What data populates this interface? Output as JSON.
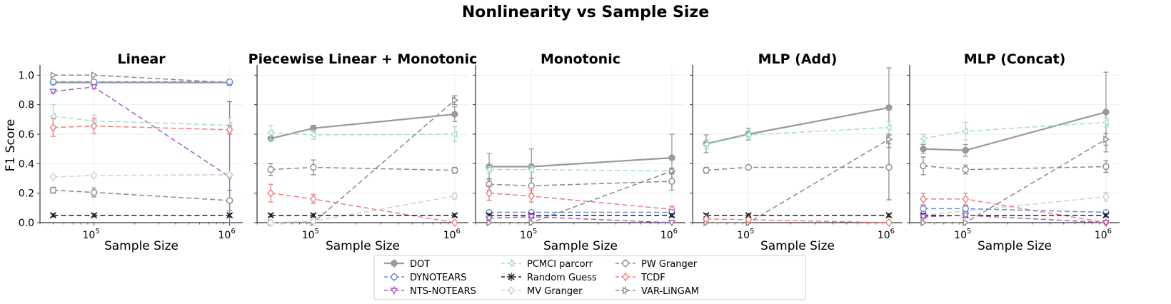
{
  "figure": {
    "suptitle": "Nonlinearity vs Sample Size"
  },
  "styles": {
    "DOT": {
      "color": "#999999",
      "dash": "solid",
      "marker": "circle-filled",
      "width": 2.2
    },
    "DYNOTEARS": {
      "color": "#6a8fd6",
      "dash": "dashed",
      "marker": "circle",
      "width": 1.5
    },
    "NTS-NOTEARS": {
      "color": "#a35fbf",
      "dash": "dashed",
      "marker": "triangle-down",
      "width": 1.5
    },
    "PCMCI parcorr": {
      "color": "#a8ddcc",
      "dash": "dashed",
      "marker": "triangle-left",
      "width": 1.5
    },
    "Random Guess": {
      "color": "#222222",
      "dash": "dashed",
      "marker": "x",
      "width": 1.5
    },
    "MV Granger": {
      "color": "#cfcfcf",
      "dash": "dashed",
      "marker": "diamond",
      "width": 1.5
    },
    "PW Granger": {
      "color": "#8a8a8a",
      "dash": "dashed",
      "marker": "circle",
      "width": 1.5
    },
    "TCDF": {
      "color": "#ee7d7d",
      "dash": "dashed",
      "marker": "diamond",
      "width": 1.5
    },
    "VAR-LiNGAM": {
      "color": "#8a8a8a",
      "dash": "dashed",
      "marker": "triangle-right",
      "width": 1.5
    }
  },
  "legend": {
    "placement": "lower-center",
    "entries": [
      "DOT",
      "DYNOTEARS",
      "NTS-NOTEARS",
      "PCMCI parcorr",
      "Random Guess",
      "MV Granger",
      "PW Granger",
      "TCDF",
      "VAR-LiNGAM"
    ]
  },
  "chart_data": [
    {
      "type": "line",
      "title": "Linear",
      "xlabel": "Sample Size",
      "ylabel": "F1 Score",
      "xscale": "log",
      "xlim": [
        40000,
        1250000
      ],
      "ylim": [
        0,
        1.05
      ],
      "xticks": [
        {
          "value": 100000,
          "label": "10^5"
        },
        {
          "value": 1000000,
          "label": "10^6"
        }
      ],
      "yticks": [
        "0.0",
        "0.2",
        "0.4",
        "0.6",
        "0.8",
        "1.0"
      ],
      "grid": true,
      "series": [
        {
          "name": "VAR-LiNGAM",
          "x": [
            50000,
            100000,
            1000000
          ],
          "y": [
            1.0,
            1.0,
            0.95
          ],
          "err": [
            0.0,
            0.0,
            0.02
          ]
        },
        {
          "name": "DOT",
          "x": [
            50000,
            100000,
            1000000
          ],
          "y": [
            0.95,
            0.95,
            0.95
          ],
          "err": [
            0.01,
            0.01,
            0.01
          ]
        },
        {
          "name": "DYNOTEARS",
          "x": [
            50000,
            100000,
            1000000
          ],
          "y": [
            0.955,
            0.955,
            0.955
          ],
          "err": [
            0.01,
            0.01,
            0.01
          ]
        },
        {
          "name": "NTS-NOTEARS",
          "x": [
            50000,
            100000,
            1000000
          ],
          "y": [
            0.89,
            0.92,
            0.31
          ],
          "err": [
            0.01,
            0.01,
            0.51
          ]
        },
        {
          "name": "PCMCI parcorr",
          "x": [
            50000,
            100000,
            1000000
          ],
          "y": [
            0.72,
            0.69,
            0.66
          ],
          "err": [
            0.08,
            0.04,
            0.05
          ]
        },
        {
          "name": "TCDF",
          "x": [
            50000,
            100000,
            1000000
          ],
          "y": [
            0.645,
            0.655,
            0.63
          ],
          "err": [
            0.06,
            0.05,
            0.03
          ]
        },
        {
          "name": "MV Granger",
          "x": [
            50000,
            100000,
            1000000
          ],
          "y": [
            0.31,
            0.32,
            0.325
          ],
          "err": [
            0.01,
            0.01,
            0.01
          ]
        },
        {
          "name": "PW Granger",
          "x": [
            50000,
            100000,
            1000000
          ],
          "y": [
            0.22,
            0.205,
            0.15
          ],
          "err": [
            0.02,
            0.03,
            0.07
          ]
        },
        {
          "name": "Random Guess",
          "x": [
            50000,
            100000,
            1000000
          ],
          "y": [
            0.05,
            0.05,
            0.05
          ],
          "err": [
            0.01,
            0.01,
            0.01
          ]
        }
      ]
    },
    {
      "type": "line",
      "title": "Piecewise Linear + Monotonic",
      "xlabel": "Sample Size",
      "ylabel": "",
      "xscale": "log",
      "xlim": [
        40000,
        1250000
      ],
      "ylim": [
        0,
        1.05
      ],
      "xticks": [
        {
          "value": 100000,
          "label": "10^5"
        },
        {
          "value": 1000000,
          "label": "10^6"
        }
      ],
      "grid": true,
      "series": [
        {
          "name": "DOT",
          "x": [
            50000,
            100000,
            1000000
          ],
          "y": [
            0.57,
            0.64,
            0.735
          ],
          "err": [
            0.01,
            0.02,
            0.05
          ]
        },
        {
          "name": "PCMCI parcorr",
          "x": [
            50000,
            100000,
            1000000
          ],
          "y": [
            0.61,
            0.595,
            0.6
          ],
          "err": [
            0.05,
            0.03,
            0.05
          ]
        },
        {
          "name": "VAR-LiNGAM",
          "x": [
            50000,
            100000,
            1000000
          ],
          "y": [
            0.0,
            0.0,
            0.83
          ],
          "err": [
            0.0,
            0.0,
            0.03
          ]
        },
        {
          "name": "PW Granger",
          "x": [
            50000,
            100000,
            1000000
          ],
          "y": [
            0.36,
            0.375,
            0.355
          ],
          "err": [
            0.04,
            0.05,
            0.02
          ]
        },
        {
          "name": "TCDF",
          "x": [
            50000,
            100000,
            1000000
          ],
          "y": [
            0.2,
            0.16,
            0.0
          ],
          "err": [
            0.06,
            0.03,
            0.0
          ]
        },
        {
          "name": "MV Granger",
          "x": [
            50000,
            100000,
            1000000
          ],
          "y": [
            0.0,
            0.01,
            0.18
          ],
          "err": [
            0.0,
            0.01,
            0.02
          ]
        },
        {
          "name": "Random Guess",
          "x": [
            50000,
            100000,
            1000000
          ],
          "y": [
            0.05,
            0.05,
            0.05
          ],
          "err": [
            0.01,
            0.01,
            0.01
          ]
        }
      ]
    },
    {
      "type": "line",
      "title": "Monotonic",
      "xlabel": "Sample Size",
      "ylabel": "",
      "xscale": "log",
      "xlim": [
        40000,
        1250000
      ],
      "ylim": [
        0,
        1.05
      ],
      "xticks": [
        {
          "value": 100000,
          "label": "10^5"
        },
        {
          "value": 1000000,
          "label": "10^6"
        }
      ],
      "grid": true,
      "series": [
        {
          "name": "DOT",
          "x": [
            50000,
            100000,
            1000000
          ],
          "y": [
            0.38,
            0.38,
            0.44
          ],
          "err": [
            0.09,
            0.12,
            0.16
          ]
        },
        {
          "name": "PCMCI parcorr",
          "x": [
            50000,
            100000,
            1000000
          ],
          "y": [
            0.36,
            0.36,
            0.35
          ],
          "err": [
            0.02,
            0.02,
            0.02
          ]
        },
        {
          "name": "PW Granger",
          "x": [
            50000,
            100000,
            1000000
          ],
          "y": [
            0.26,
            0.25,
            0.28
          ],
          "err": [
            0.04,
            0.05,
            0.06
          ]
        },
        {
          "name": "TCDF",
          "x": [
            50000,
            100000,
            1000000
          ],
          "y": [
            0.2,
            0.18,
            0.09
          ],
          "err": [
            0.05,
            0.04,
            0.02
          ]
        },
        {
          "name": "VAR-LiNGAM",
          "x": [
            50000,
            100000,
            1000000
          ],
          "y": [
            0.0,
            0.0,
            0.35
          ],
          "err": [
            0.0,
            0.0,
            0.02
          ]
        },
        {
          "name": "DYNOTEARS",
          "x": [
            50000,
            100000,
            1000000
          ],
          "y": [
            0.07,
            0.07,
            0.07
          ],
          "err": [
            0.01,
            0.01,
            0.01
          ]
        },
        {
          "name": "Random Guess",
          "x": [
            50000,
            100000,
            1000000
          ],
          "y": [
            0.05,
            0.05,
            0.05
          ],
          "err": [
            0.01,
            0.01,
            0.01
          ]
        },
        {
          "name": "NTS-NOTEARS",
          "x": [
            50000,
            100000,
            1000000
          ],
          "y": [
            0.03,
            0.04,
            0.0
          ],
          "err": [
            0.01,
            0.01,
            0.0
          ]
        }
      ]
    },
    {
      "type": "line",
      "title": "MLP (Add)",
      "xlabel": "Sample Size",
      "ylabel": "",
      "xscale": "log",
      "xlim": [
        40000,
        1250000
      ],
      "ylim": [
        0,
        1.05
      ],
      "xticks": [
        {
          "value": 100000,
          "label": "10^5"
        },
        {
          "value": 1000000,
          "label": "10^6"
        }
      ],
      "grid": true,
      "series": [
        {
          "name": "DOT",
          "x": [
            50000,
            100000,
            1000000
          ],
          "y": [
            0.535,
            0.6,
            0.78
          ],
          "err": [
            0.06,
            0.04,
            0.27
          ]
        },
        {
          "name": "PCMCI parcorr",
          "x": [
            50000,
            100000,
            1000000
          ],
          "y": [
            0.53,
            0.595,
            0.645
          ],
          "err": [
            0.03,
            0.03,
            0.04
          ]
        },
        {
          "name": "PW Granger",
          "x": [
            50000,
            100000,
            1000000
          ],
          "y": [
            0.355,
            0.375,
            0.375
          ],
          "err": [
            0.02,
            0.01,
            0.22
          ]
        },
        {
          "name": "VAR-LiNGAM",
          "x": [
            50000,
            100000,
            1000000
          ],
          "y": [
            0.0,
            0.0,
            0.565
          ],
          "err": [
            0.0,
            0.0,
            0.03
          ]
        },
        {
          "name": "Random Guess",
          "x": [
            50000,
            100000,
            1000000
          ],
          "y": [
            0.05,
            0.05,
            0.05
          ],
          "err": [
            0.01,
            0.01,
            0.01
          ]
        },
        {
          "name": "TCDF",
          "x": [
            50000,
            100000,
            1000000
          ],
          "y": [
            0.025,
            0.02,
            0.0
          ],
          "err": [
            0.01,
            0.01,
            0.0
          ]
        }
      ]
    },
    {
      "type": "line",
      "title": "MLP (Concat)",
      "xlabel": "Sample Size",
      "ylabel": "",
      "xscale": "log",
      "xlim": [
        40000,
        1250000
      ],
      "ylim": [
        0,
        1.05
      ],
      "xticks": [
        {
          "value": 100000,
          "label": "10^5"
        },
        {
          "value": 1000000,
          "label": "10^6"
        }
      ],
      "grid": true,
      "series": [
        {
          "name": "DOT",
          "x": [
            50000,
            100000,
            1000000
          ],
          "y": [
            0.5,
            0.49,
            0.75
          ],
          "err": [
            0.03,
            0.04,
            0.27
          ]
        },
        {
          "name": "PCMCI parcorr",
          "x": [
            50000,
            100000,
            1000000
          ],
          "y": [
            0.57,
            0.62,
            0.68
          ],
          "err": [
            0.03,
            0.06,
            0.03
          ]
        },
        {
          "name": "PW Granger",
          "x": [
            50000,
            100000,
            1000000
          ],
          "y": [
            0.385,
            0.36,
            0.38
          ],
          "err": [
            0.06,
            0.03,
            0.04
          ]
        },
        {
          "name": "VAR-LiNGAM",
          "x": [
            50000,
            100000,
            1000000
          ],
          "y": [
            0.0,
            0.0,
            0.565
          ],
          "err": [
            0.0,
            0.0,
            0.04
          ]
        },
        {
          "name": "MV Granger",
          "x": [
            50000,
            100000,
            1000000
          ],
          "y": [
            0.05,
            0.08,
            0.175
          ],
          "err": [
            0.01,
            0.01,
            0.03
          ]
        },
        {
          "name": "TCDF",
          "x": [
            50000,
            100000,
            1000000
          ],
          "y": [
            0.16,
            0.16,
            0.0
          ],
          "err": [
            0.04,
            0.04,
            0.0
          ]
        },
        {
          "name": "DYNOTEARS",
          "x": [
            50000,
            100000,
            1000000
          ],
          "y": [
            0.095,
            0.095,
            0.07
          ],
          "err": [
            0.02,
            0.02,
            0.01
          ]
        },
        {
          "name": "Random Guess",
          "x": [
            50000,
            100000,
            1000000
          ],
          "y": [
            0.05,
            0.05,
            0.05
          ],
          "err": [
            0.01,
            0.01,
            0.01
          ]
        },
        {
          "name": "NTS-NOTEARS",
          "x": [
            50000,
            100000,
            1000000
          ],
          "y": [
            0.04,
            0.05,
            0.0
          ],
          "err": [
            0.01,
            0.01,
            0.0
          ]
        }
      ]
    }
  ]
}
